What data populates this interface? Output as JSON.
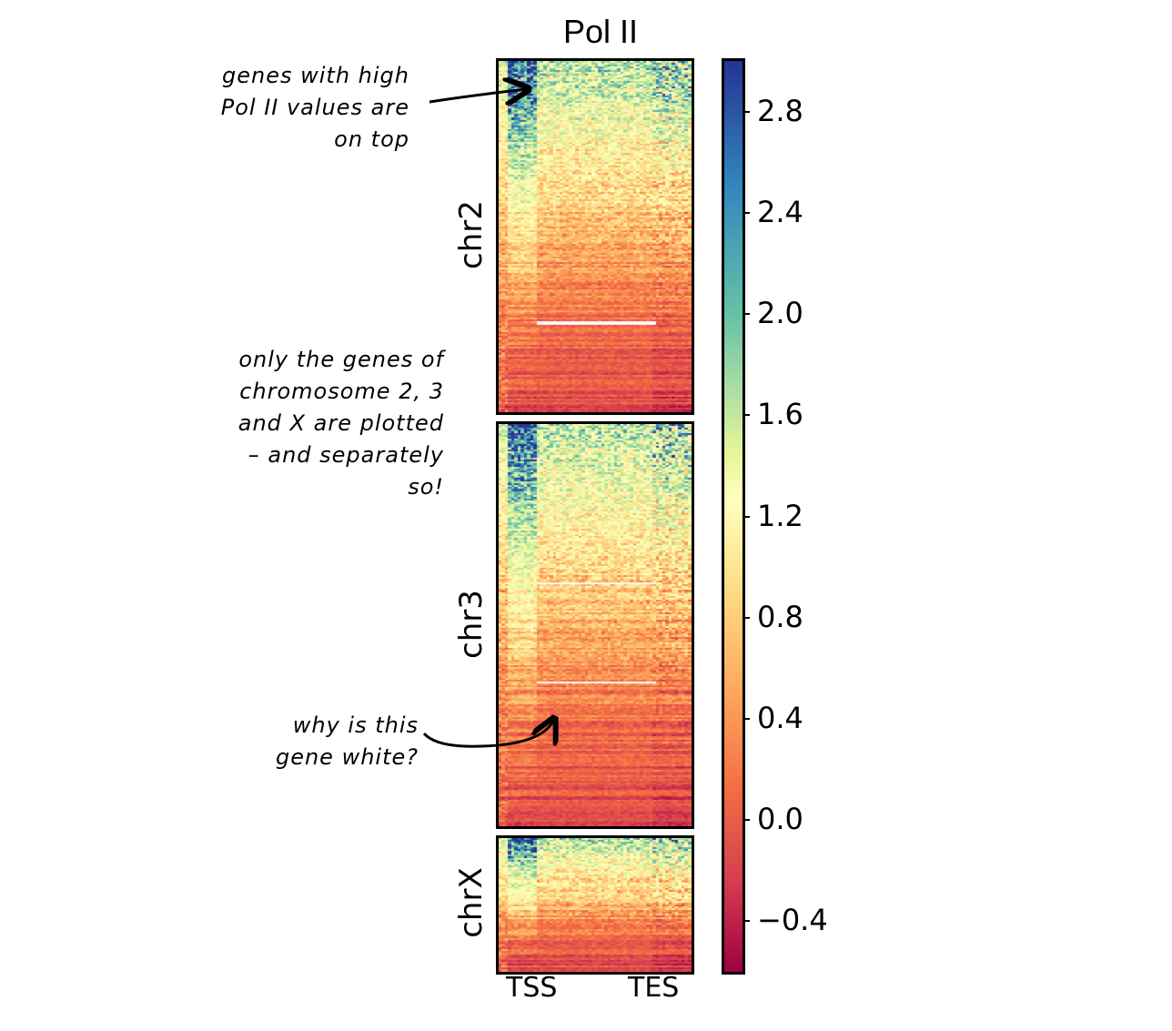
{
  "chart_data": {
    "type": "heatmap",
    "title": "Pol II",
    "panels": [
      {
        "name": "chr2",
        "label": "chr2",
        "rows": 190,
        "cols": 60
      },
      {
        "name": "chr3",
        "label": "chr3",
        "rows": 215,
        "cols": 60
      },
      {
        "name": "chrX",
        "label": "chrX",
        "rows": 72,
        "cols": 60
      }
    ],
    "xticks": [
      "TSS",
      "TES"
    ],
    "colorbar": {
      "min": -0.6,
      "max": 3.0,
      "ticks": [
        2.8,
        2.4,
        2.0,
        1.6,
        1.2,
        0.8,
        0.4,
        0.0,
        -0.4
      ],
      "tick_labels": [
        "2.8",
        "2.4",
        "2.0",
        "1.6",
        "1.2",
        "0.8",
        "0.4",
        "0.0",
        "−0.4"
      ],
      "colormap": [
        "#9e0142",
        "#d53e4f",
        "#f46d43",
        "#fdae61",
        "#fee08b",
        "#ffffbf",
        "#e6f598",
        "#abdda4",
        "#66c2a5",
        "#3288bd",
        "#253494"
      ]
    },
    "annotations": [
      {
        "lines": [
          "genes with high",
          "Pol II values are",
          "on top"
        ]
      },
      {
        "lines": [
          "only the genes of",
          "chromosome 2, 3",
          "and X are plotted",
          "– and separately",
          "so!"
        ]
      },
      {
        "lines": [
          "why is this",
          "gene white?"
        ]
      }
    ]
  }
}
